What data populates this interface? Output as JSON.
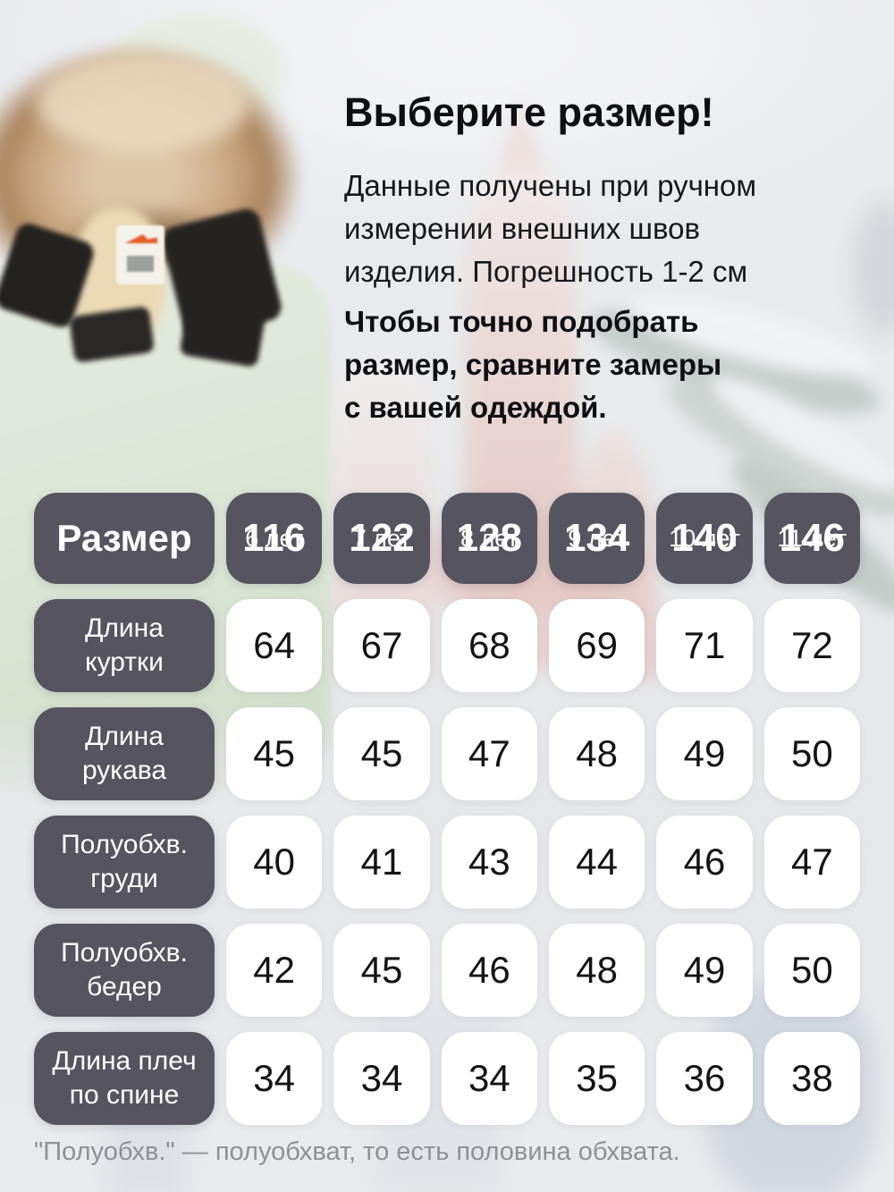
{
  "header": {
    "title": "Выберите размер!",
    "intro_lines": [
      "Данные получены при ручном",
      "измерении внешних швов",
      "изделия. Погрешность 1-2 см"
    ],
    "note_lines": [
      "Чтобы точно подобрать",
      "размер, сравните замеры",
      "с вашей одеждой."
    ]
  },
  "table": {
    "corner_label": "Размер",
    "columns": [
      {
        "age": "6 лет",
        "size": "116"
      },
      {
        "age": "7 лет",
        "size": "122"
      },
      {
        "age": "8 лет",
        "size": "128"
      },
      {
        "age": "9 лет",
        "size": "134"
      },
      {
        "age": "10 лет",
        "size": "140"
      },
      {
        "age": "11 лет",
        "size": "146"
      }
    ],
    "rows": [
      {
        "label": "Длина\nкуртки",
        "values": [
          "64",
          "67",
          "68",
          "69",
          "71",
          "72"
        ]
      },
      {
        "label": "Длина\nрукава",
        "values": [
          "45",
          "45",
          "47",
          "48",
          "49",
          "50"
        ]
      },
      {
        "label": "Полуобхв.\nгруди",
        "values": [
          "40",
          "41",
          "43",
          "44",
          "46",
          "47"
        ]
      },
      {
        "label": "Полуобхв.\nбедер",
        "values": [
          "42",
          "45",
          "46",
          "48",
          "49",
          "50"
        ]
      },
      {
        "label": "Длина плеч\nпо спине",
        "values": [
          "34",
          "34",
          "34",
          "35",
          "36",
          "38"
        ]
      }
    ]
  },
  "footnote": "\"Полуобхв.\" — полуобхват, то есть половина обхвата.",
  "colors": {
    "cell_dark": "#56555f",
    "cell_light": "#ffffff",
    "jacket_mint": "#dde6d8",
    "fur_tan": "#cbab85",
    "muted_text": "#8d9196"
  }
}
